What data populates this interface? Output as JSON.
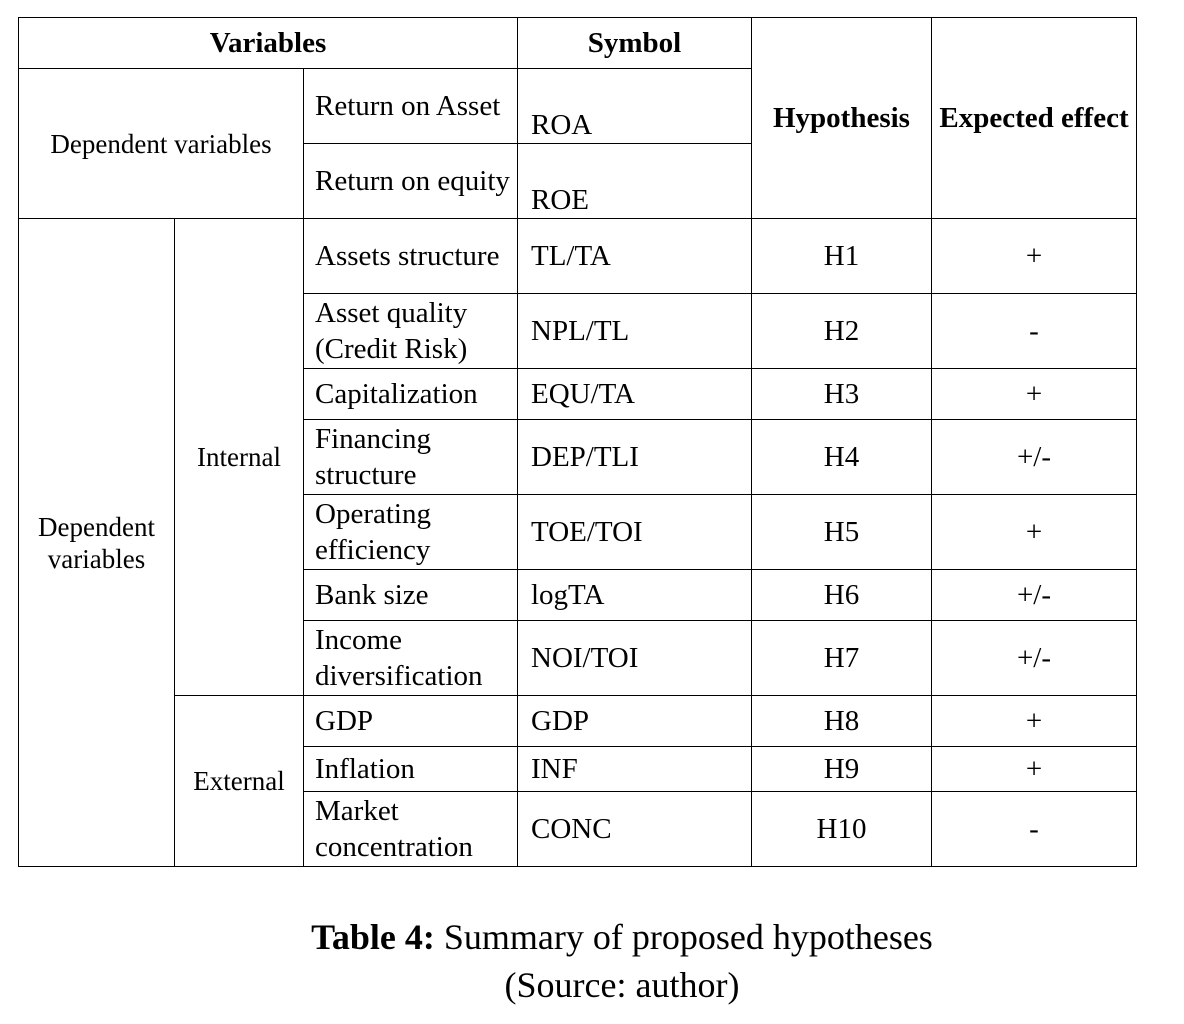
{
  "header": {
    "variables": "Variables",
    "symbol": "Symbol",
    "hypothesis": "Hypothesis",
    "expected_effect": "Expected effect"
  },
  "dependent": {
    "group_label": "Dependent variables",
    "rows": [
      {
        "variable": "Return on Asset",
        "symbol": "ROA"
      },
      {
        "variable": "Return on equity",
        "symbol": "ROE"
      }
    ]
  },
  "independent": {
    "group_label": "Dependent variables",
    "internal": {
      "label": "Internal",
      "rows": [
        {
          "variable": "Assets structure",
          "symbol": "TL/TA",
          "hypothesis": "H1",
          "effect": "+"
        },
        {
          "variable": "Asset quality (Credit Risk)",
          "symbol": "NPL/TL",
          "hypothesis": "H2",
          "effect": "-"
        },
        {
          "variable": "Capitalization",
          "symbol": "EQU/TA",
          "hypothesis": "H3",
          "effect": "+"
        },
        {
          "variable": "Financing structure",
          "symbol": "DEP/TLI",
          "hypothesis": "H4",
          "effect": "+/-"
        },
        {
          "variable": "Operating efficiency",
          "symbol": "TOE/TOI",
          "hypothesis": "H5",
          "effect": "+"
        },
        {
          "variable": "Bank size",
          "symbol": "logTA",
          "hypothesis": "H6",
          "effect": "+/-"
        },
        {
          "variable": "Income diversification",
          "symbol": "NOI/TOI",
          "hypothesis": "H7",
          "effect": "+/-"
        }
      ]
    },
    "external": {
      "label": "External",
      "rows": [
        {
          "variable": "GDP",
          "symbol": "GDP",
          "hypothesis": "H8",
          "effect": "+"
        },
        {
          "variable": "Inflation",
          "symbol": "INF",
          "hypothesis": "H9",
          "effect": "+"
        },
        {
          "variable": "Market concentration",
          "symbol": "CONC",
          "hypothesis": "H10",
          "effect": "-"
        }
      ]
    }
  },
  "caption": {
    "label": "Table 4:",
    "text": " Summary of proposed hypotheses",
    "source": "(Source: author)"
  }
}
